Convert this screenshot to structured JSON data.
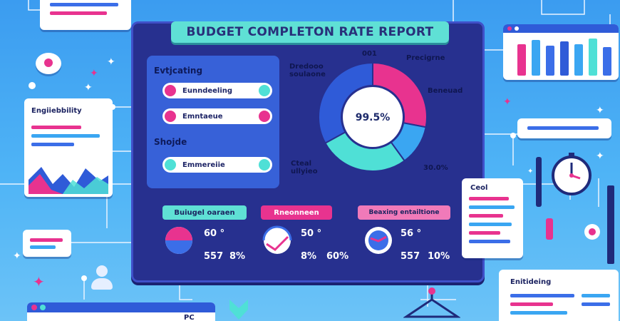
{
  "header": {
    "title": "BUDGET COMPLETON RATE REPORT"
  },
  "left_panel": {
    "section1_label": "Evtjcating",
    "pill1_label": "Eunndeeling",
    "pill2_label": "Emntaeue",
    "section2_label": "Shojde",
    "pill3_label": "Emmereiie"
  },
  "donut": {
    "center_label": "99.5%",
    "label_top_left": "Dredooo\nsoulaone",
    "label_top": "001",
    "label_top_right": "Precigrne",
    "label_right": "Beneuad",
    "label_bottom_left": "Cteal\nullyieo",
    "label_bottom_right": "30.0%"
  },
  "chart_data": {
    "type": "pie",
    "values": [
      28,
      12,
      27,
      33
    ],
    "colors": [
      "#e8338f",
      "#3aa6f2",
      "#4fe0d6",
      "#2f5bd8"
    ],
    "center_value": "99.5%"
  },
  "metrics": [
    {
      "tag": "Buiugel oaraen",
      "value1": "60 °",
      "value2": "557",
      "value3": "8%"
    },
    {
      "tag": "Rneonneen",
      "value1": "50 °",
      "value2": "8%",
      "value3": "60%"
    },
    {
      "tag": "Beaxing entailtione",
      "value1": "56 °",
      "value2": "557",
      "value3": "10%"
    }
  ],
  "left_side": {
    "doc_title": "Engiiebbility"
  },
  "right_side": {
    "goal_label": "Ceol",
    "bottom_card_title": "Enitideing"
  },
  "bottom_left": {
    "badge": "PC"
  },
  "colors": {
    "panel": "#27308f",
    "accent_teal": "#5fe0d5",
    "accent_pink": "#e8338f",
    "accent_blue": "#3aa6f2"
  }
}
